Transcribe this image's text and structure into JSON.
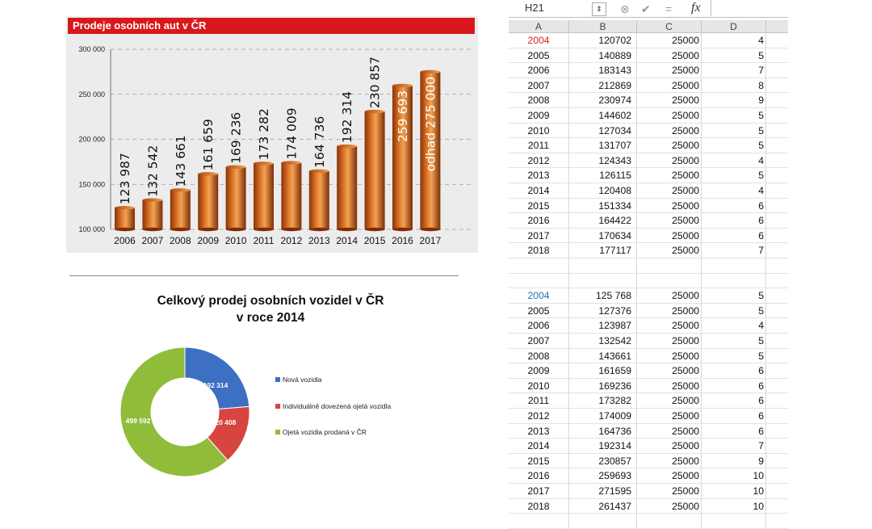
{
  "bar_chart": {
    "title": "Prodeje osobních aut v ČR",
    "chart_data": {
      "type": "bar",
      "title": "Prodeje osobních aut v ČR",
      "categories": [
        "2006",
        "2007",
        "2008",
        "2009",
        "2010",
        "2011",
        "2012",
        "2013",
        "2014",
        "2015",
        "2016",
        "2017"
      ],
      "values": [
        123987,
        132542,
        143661,
        161659,
        169236,
        173282,
        174009,
        164736,
        192314,
        230857,
        259693,
        275000
      ],
      "data_labels": [
        "123 987",
        "132 542",
        "143 661",
        "161 659",
        "169 236",
        "173 282",
        "174 009",
        "164 736",
        "192 314",
        "230 857",
        "259 693",
        "odhad 275 000"
      ],
      "ylim": [
        100000,
        300000
      ],
      "yticks": [
        100000,
        150000,
        200000,
        250000,
        300000
      ],
      "ytick_labels": [
        "100 000",
        "150 000",
        "200 000",
        "250 000",
        "300 000"
      ],
      "grid": true,
      "colors": {
        "bar": "#c8550f",
        "bar_light": "#f0a050",
        "bar_dark": "#8a3208",
        "title_bg": "#d8181b"
      }
    }
  },
  "donut_chart": {
    "title_line1": "Celkový prodej osobních vozidel v ČR",
    "title_line2": "v roce 2014",
    "chart_data": {
      "type": "pie",
      "title": "Celkový prodej osobních vozidel v ČR v roce 2014",
      "legend_position": "right",
      "slices": [
        {
          "name": "Nová vozidla",
          "value": 192314,
          "label": "192 314",
          "color": "#3d6fc2"
        },
        {
          "name": "Individuálně dovezená ojetá vozidla",
          "value": 120408,
          "label": "120 408",
          "color": "#d64540"
        },
        {
          "name": "Ojetá vozidla prodaná v ČR",
          "value": 499592,
          "label": "499 592",
          "color": "#8fbd3a"
        }
      ]
    }
  },
  "spreadsheet": {
    "cell_ref": "H21",
    "formula_icon": "fx",
    "columns": [
      "A",
      "B",
      "C",
      "D"
    ],
    "table1": [
      [
        "2004",
        "120702",
        "25000",
        "4"
      ],
      [
        "2005",
        "140889",
        "25000",
        "5"
      ],
      [
        "2006",
        "183143",
        "25000",
        "7"
      ],
      [
        "2007",
        "212869",
        "25000",
        "8"
      ],
      [
        "2008",
        "230974",
        "25000",
        "9"
      ],
      [
        "2009",
        "144602",
        "25000",
        "5"
      ],
      [
        "2010",
        "127034",
        "25000",
        "5"
      ],
      [
        "2011",
        "131707",
        "25000",
        "5"
      ],
      [
        "2012",
        "124343",
        "25000",
        "4"
      ],
      [
        "2013",
        "126115",
        "25000",
        "5"
      ],
      [
        "2014",
        "120408",
        "25000",
        "4"
      ],
      [
        "2015",
        "151334",
        "25000",
        "6"
      ],
      [
        "2016",
        "164422",
        "25000",
        "6"
      ],
      [
        "2017",
        "170634",
        "25000",
        "6"
      ],
      [
        "2018",
        "177117",
        "25000",
        "7"
      ]
    ],
    "table2": [
      [
        "2004",
        "125 768",
        "25000",
        "5"
      ],
      [
        "2005",
        "127376",
        "25000",
        "5"
      ],
      [
        "2006",
        "123987",
        "25000",
        "4"
      ],
      [
        "2007",
        "132542",
        "25000",
        "5"
      ],
      [
        "2008",
        "143661",
        "25000",
        "5"
      ],
      [
        "2009",
        "161659",
        "25000",
        "6"
      ],
      [
        "2010",
        "169236",
        "25000",
        "6"
      ],
      [
        "2011",
        "173282",
        "25000",
        "6"
      ],
      [
        "2012",
        "174009",
        "25000",
        "6"
      ],
      [
        "2013",
        "164736",
        "25000",
        "6"
      ],
      [
        "2014",
        "192314",
        "25000",
        "7"
      ],
      [
        "2015",
        "230857",
        "25000",
        "9"
      ],
      [
        "2016",
        "259693",
        "25000",
        "10"
      ],
      [
        "2017",
        "271595",
        "25000",
        "10"
      ],
      [
        "2018",
        "261437",
        "25000",
        "10"
      ]
    ],
    "table1_first_color": "#e02020",
    "table2_first_color": "#2f6fb0"
  }
}
